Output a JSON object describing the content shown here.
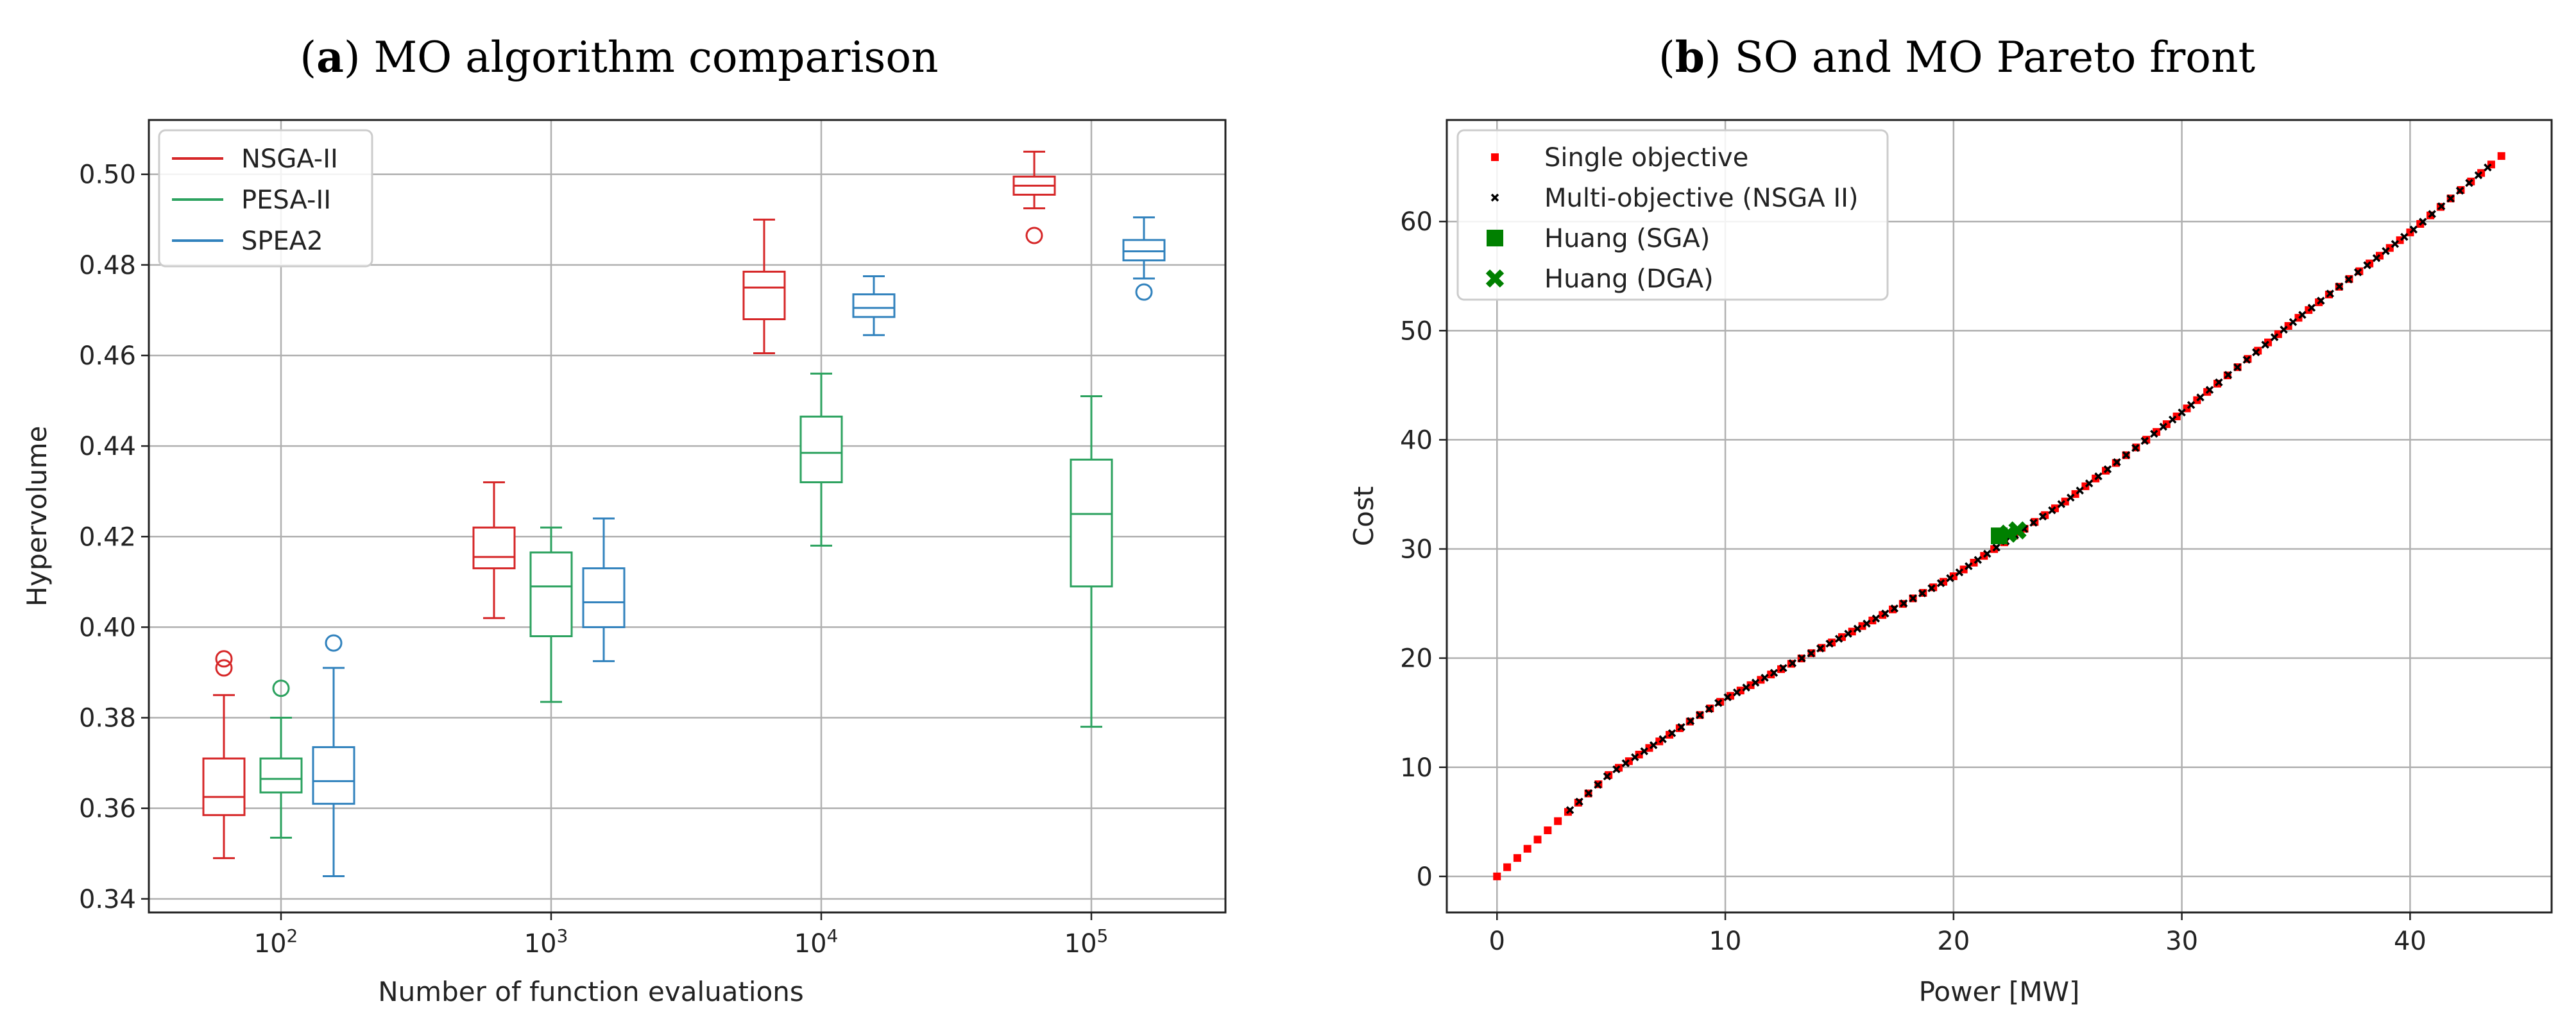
{
  "figure": {
    "panel_a": {
      "caption_letter": "a",
      "caption_text": " MO algorithm comparison"
    },
    "panel_b": {
      "caption_letter": "b",
      "caption_text": " SO and MO Pareto front"
    }
  },
  "chart_data": [
    {
      "type": "box",
      "title": "(a) MO algorithm comparison",
      "xlabel": "Number of function evaluations",
      "ylabel": "Hypervolume",
      "categories": [
        "10^2",
        "10^3",
        "10^4",
        "10^5"
      ],
      "category_labels": [
        {
          "base": "10",
          "exp": "2"
        },
        {
          "base": "10",
          "exp": "3"
        },
        {
          "base": "10",
          "exp": "4"
        },
        {
          "base": "10",
          "exp": "5"
        }
      ],
      "ylim": [
        0.337,
        0.512
      ],
      "yticks": [
        0.34,
        0.36,
        0.38,
        0.4,
        0.42,
        0.44,
        0.46,
        0.48,
        0.5
      ],
      "ytick_labels": [
        "0.34",
        "0.36",
        "0.38",
        "0.40",
        "0.42",
        "0.44",
        "0.46",
        "0.48",
        "0.50"
      ],
      "grid": true,
      "legend_position": "top-left",
      "series": [
        {
          "name": "NSGA-II",
          "color": "#d62728",
          "boxes": [
            {
              "whislo": 0.349,
              "q1": 0.3585,
              "med": 0.3625,
              "q3": 0.371,
              "whishi": 0.385,
              "fliers": [
                0.391,
                0.393
              ]
            },
            {
              "whislo": 0.402,
              "q1": 0.413,
              "med": 0.4155,
              "q3": 0.422,
              "whishi": 0.432,
              "fliers": []
            },
            {
              "whislo": 0.4605,
              "q1": 0.468,
              "med": 0.475,
              "q3": 0.4785,
              "whishi": 0.49,
              "fliers": []
            },
            {
              "whislo": 0.4925,
              "q1": 0.4955,
              "med": 0.4975,
              "q3": 0.4995,
              "whishi": 0.505,
              "fliers": [
                0.4865
              ]
            }
          ]
        },
        {
          "name": "PESA-II",
          "color": "#2ca25f",
          "boxes": [
            {
              "whislo": 0.3535,
              "q1": 0.3635,
              "med": 0.3665,
              "q3": 0.371,
              "whishi": 0.38,
              "fliers": [
                0.3865
              ]
            },
            {
              "whislo": 0.3835,
              "q1": 0.398,
              "med": 0.409,
              "q3": 0.4165,
              "whishi": 0.422,
              "fliers": []
            },
            {
              "whislo": 0.418,
              "q1": 0.432,
              "med": 0.4385,
              "q3": 0.4465,
              "whishi": 0.456,
              "fliers": []
            },
            {
              "whislo": 0.378,
              "q1": 0.409,
              "med": 0.425,
              "q3": 0.437,
              "whishi": 0.451,
              "fliers": []
            }
          ]
        },
        {
          "name": "SPEA2",
          "color": "#3182bd",
          "boxes": [
            {
              "whislo": 0.345,
              "q1": 0.361,
              "med": 0.366,
              "q3": 0.3735,
              "whishi": 0.391,
              "fliers": [
                0.3965
              ]
            },
            {
              "whislo": 0.3925,
              "q1": 0.4,
              "med": 0.4055,
              "q3": 0.413,
              "whishi": 0.424,
              "fliers": []
            },
            {
              "whislo": 0.4645,
              "q1": 0.4685,
              "med": 0.4705,
              "q3": 0.4735,
              "whishi": 0.4775,
              "fliers": []
            },
            {
              "whislo": 0.477,
              "q1": 0.481,
              "med": 0.483,
              "q3": 0.4855,
              "whishi": 0.4905,
              "fliers": [
                0.474
              ]
            }
          ]
        }
      ]
    },
    {
      "type": "scatter",
      "title": "(b) SO and MO Pareto front",
      "xlabel": "Power [MW]",
      "ylabel": "Cost",
      "xlim": [
        -2.2,
        46.2
      ],
      "ylim": [
        -3.3,
        69.3
      ],
      "xticks": [
        0,
        10,
        20,
        30,
        40
      ],
      "yticks": [
        0,
        10,
        20,
        30,
        40,
        50,
        60
      ],
      "grid": true,
      "legend_position": "top-left",
      "front_shape": [
        [
          0,
          0
        ],
        [
          5,
          9.5
        ],
        [
          10,
          16.3
        ],
        [
          15,
          21.8
        ],
        [
          20,
          27.5
        ],
        [
          25,
          34.5
        ],
        [
          30,
          42.5
        ],
        [
          35,
          51
        ],
        [
          40,
          59
        ],
        [
          44,
          66
        ]
      ],
      "series": [
        {
          "name": "Single objective",
          "color": "#ff0000",
          "marker": "square",
          "x_start": 0,
          "x_end": 44,
          "count": 100
        },
        {
          "name": "Multi-objective (NSGA II)",
          "color": "#000000",
          "marker": "x",
          "x_start": 3.2,
          "x_end": 43.4,
          "count": 100
        },
        {
          "name": "Huang (SGA)",
          "color": "#008000",
          "marker": "square",
          "points": [
            [
              22.0,
              31.2
            ]
          ]
        },
        {
          "name": "Huang (DGA)",
          "color": "#008000",
          "marker": "X",
          "points": [
            [
              22.8,
              31.7
            ],
            [
              22.4,
              31.4
            ]
          ]
        }
      ]
    }
  ]
}
